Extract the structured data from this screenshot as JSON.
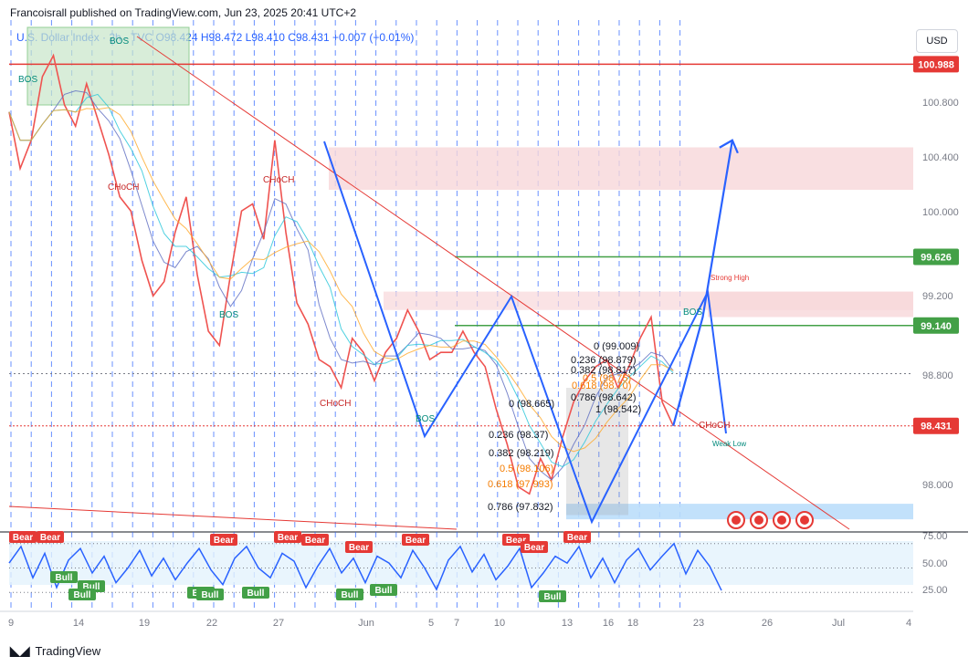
{
  "header": {
    "publisher_line": "Francoisrall published on TradingView.com, Jun 23, 2025 20:41 UTC+2",
    "legend": "U.S. Dollar Index · 2h · TVC  O98.424  H98.472  L98.410  C98.431  +0.007 (+0.01%)",
    "currency_button": "USD"
  },
  "footer": {
    "brand": "TradingView"
  },
  "colors": {
    "price_line": "#ef5350",
    "projection": "#2962ff",
    "rsi_line": "#2962ff",
    "level_green": "#43a047",
    "level_red": "#e53935",
    "zone_red": "#f8d7da",
    "zone_blue": "#bbdefb",
    "zone_green": "#c8e6c9"
  },
  "chart_data": [
    {
      "type": "line",
      "title": "U.S. Dollar Index",
      "y_axis_ticks": [
        "100.800",
        "100.400",
        "100.000",
        "99.200",
        "98.800",
        "98.000"
      ],
      "ylim": [
        97.7,
        101.3
      ],
      "x_axis_ticks": [
        "9",
        "14",
        "19",
        "22",
        "27",
        "Jun",
        "5",
        "7",
        "10",
        "13",
        "16",
        "18",
        "23",
        "26",
        "Jul",
        "4"
      ],
      "series": [
        {
          "x": [
            0,
            3,
            6,
            9,
            12,
            15,
            18,
            21,
            24,
            27,
            30,
            33,
            36,
            39,
            42,
            45,
            48,
            51,
            54,
            57,
            60,
            63,
            66,
            69,
            72,
            75,
            78,
            81,
            84,
            87,
            90,
            93,
            96,
            99,
            102,
            105,
            108,
            111,
            114,
            117,
            120,
            123,
            126,
            129,
            132,
            135,
            138,
            141,
            144,
            147,
            150,
            153,
            156,
            159,
            162,
            165,
            168,
            171,
            174,
            177,
            180
          ],
          "values": [
            100.65,
            100.25,
            100.45,
            100.9,
            101.05,
            100.7,
            100.55,
            100.85,
            100.6,
            100.35,
            100.05,
            99.95,
            99.6,
            99.35,
            99.45,
            99.8,
            100.05,
            99.5,
            99.1,
            99.0,
            99.5,
            99.95,
            100.0,
            99.75,
            100.45,
            99.8,
            99.3,
            99.15,
            98.9,
            98.85,
            98.7,
            99.05,
            98.95,
            98.75,
            98.95,
            99.05,
            99.25,
            99.1,
            98.9,
            98.95,
            98.95,
            99.1,
            98.95,
            98.85,
            98.55,
            98.3,
            98.0,
            97.95,
            98.2,
            98.05,
            98.35,
            98.6,
            98.75,
            98.85,
            98.9,
            98.7,
            98.85,
            99.05,
            99.2,
            98.6,
            98.431
          ]
        }
      ],
      "annotations": [
        "BOS",
        "CHoCH",
        "Strong High",
        "Weak Low",
        "0 (99.009)",
        "0.236 (98.879)",
        "0.382 (98.817)",
        "0.5 (98.75)",
        "0.618 (98.70)",
        "0.786 (98.642)",
        "1 (98.542)",
        "0 (98.665)",
        "0.236 (98.37)",
        "0.382 (98.219)",
        "0.5 (98.106)",
        "0.618 (97.993)",
        "0.786 (97.832)"
      ],
      "price_labels": [
        {
          "value": 100.988,
          "label": "100.988",
          "color": "red"
        },
        {
          "value": 99.626,
          "label": "99.626",
          "color": "green"
        },
        {
          "value": 99.14,
          "label": "99.140",
          "color": "green"
        },
        {
          "value": 98.431,
          "label": "98.431",
          "color": "red"
        }
      ],
      "projection_path": {
        "x": [
          180,
          188,
          196
        ],
        "values": [
          98.431,
          99.2,
          100.45
        ]
      }
    },
    {
      "type": "line",
      "title": "",
      "y_axis_ticks": [
        "75.00",
        "50.00",
        "25.00"
      ],
      "ylim": [
        15,
        85
      ],
      "series": [
        {
          "values": [
            55,
            72,
            40,
            65,
            30,
            58,
            70,
            45,
            62,
            35,
            50,
            68,
            42,
            60,
            38,
            55,
            70,
            48,
            33,
            60,
            72,
            50,
            40,
            65,
            57,
            30,
            52,
            70,
            45,
            60,
            35,
            62,
            55,
            40,
            68,
            50,
            28,
            58,
            72,
            46,
            64,
            38,
            52,
            70,
            30,
            45,
            62,
            55,
            72,
            40,
            60,
            35,
            58,
            70,
            48,
            62,
            75,
            44,
            68,
            52,
            27
          ]
        }
      ],
      "signals": [
        "Bull",
        "Bull",
        "Bull",
        "Bull",
        "Bull",
        "Bull",
        "Bull",
        "Bull",
        "Bull",
        "Bear",
        "Bear",
        "Bear",
        "Bear",
        "Bear",
        "Bear",
        "Bear",
        "Bear",
        "Bear",
        "Bear"
      ]
    }
  ]
}
